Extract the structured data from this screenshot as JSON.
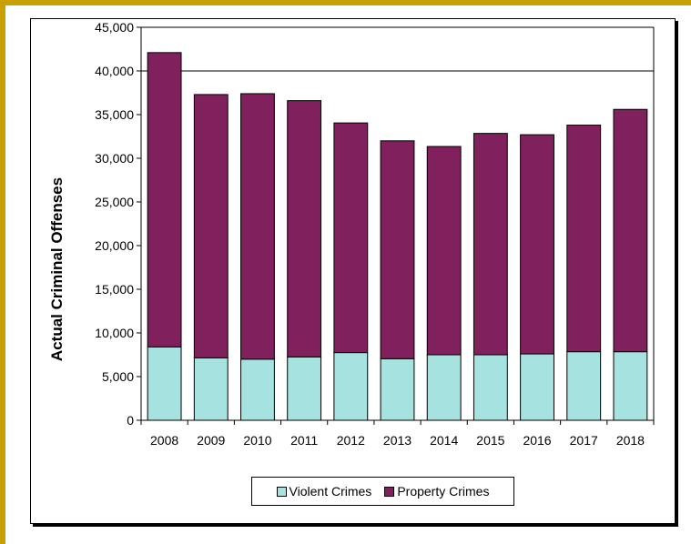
{
  "colors": {
    "frame": "#c8a000",
    "violent": "#a6e3e0",
    "property": "#80205c"
  },
  "chart_data": {
    "type": "bar",
    "stacked": true,
    "categories": [
      "2008",
      "2009",
      "2010",
      "2011",
      "2012",
      "2013",
      "2014",
      "2015",
      "2016",
      "2017",
      "2018"
    ],
    "series": [
      {
        "name": "Violent Crimes",
        "color": "#a6e3e0",
        "values": [
          8400,
          7150,
          7000,
          7250,
          7750,
          7050,
          7500,
          7500,
          7600,
          7850,
          7850
        ]
      },
      {
        "name": "Property Crimes",
        "color": "#80205c",
        "values": [
          33700,
          30150,
          30400,
          29350,
          26300,
          24950,
          23850,
          25350,
          25100,
          25950,
          27750
        ]
      }
    ],
    "xlabel": "",
    "ylabel": "Actual Criminal Offenses",
    "ylim": [
      0,
      45000
    ],
    "ytick_labels": [
      "0",
      "5,000",
      "10,000",
      "15,000",
      "20,000",
      "25,000",
      "30,000",
      "35,000",
      "40,000",
      "45,000"
    ],
    "gridlines": [
      40000
    ],
    "legend_position": "bottom"
  }
}
